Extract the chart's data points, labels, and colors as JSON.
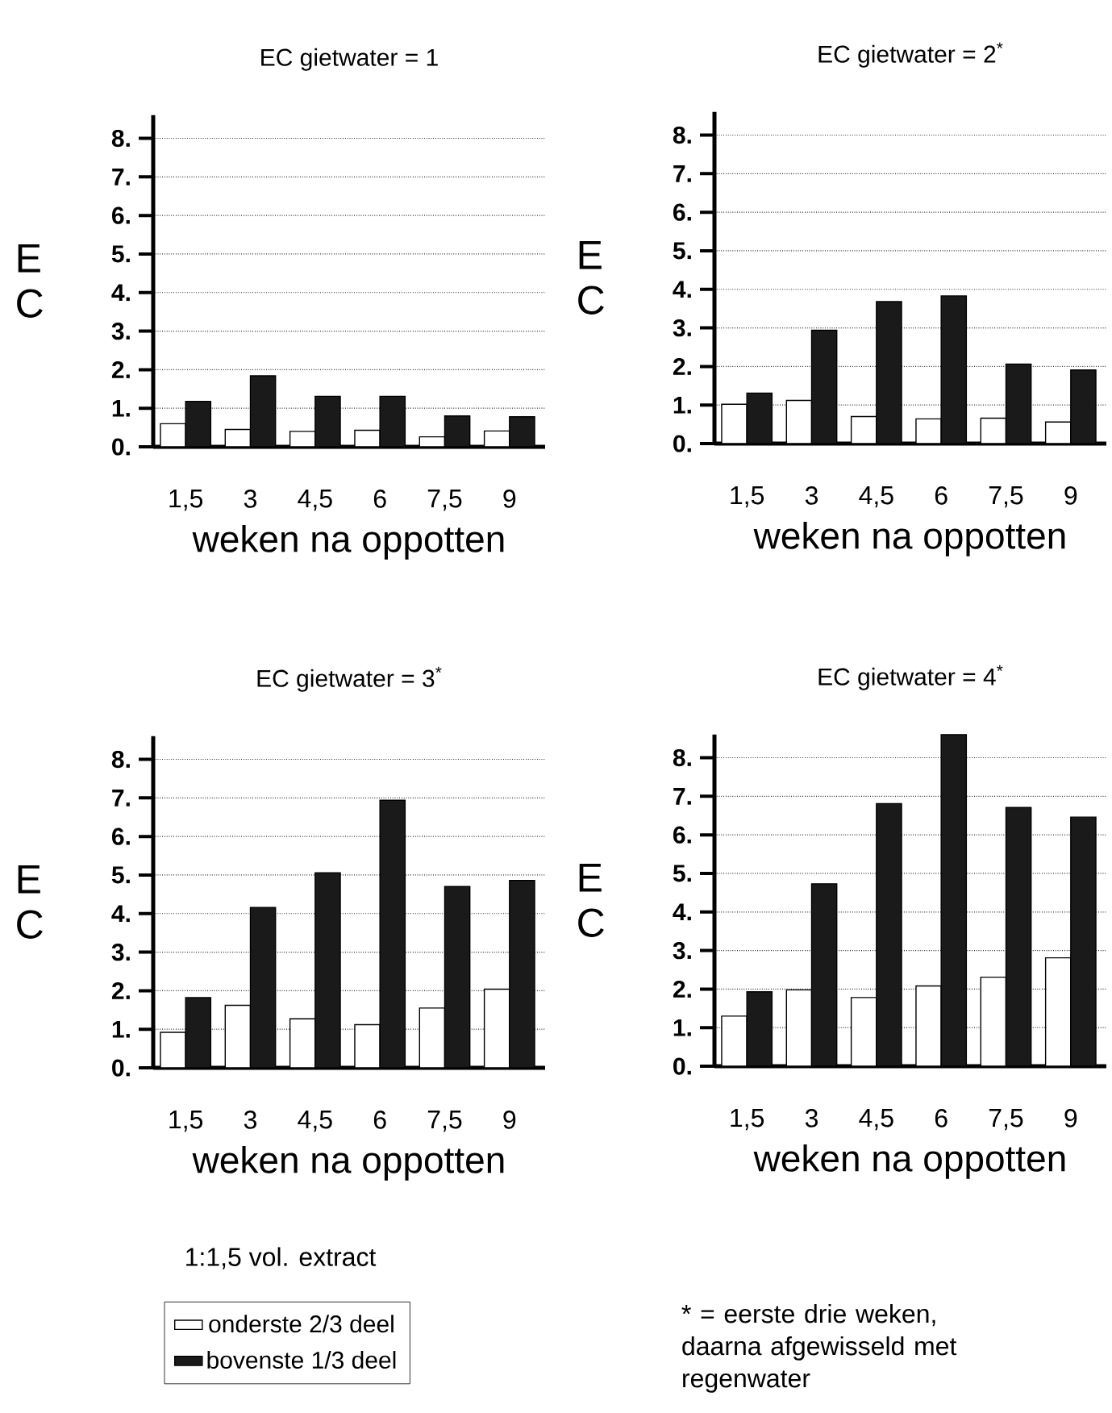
{
  "chart_data": [
    {
      "type": "bar",
      "title": "EC gietwater = 1",
      "xlabel": "weken na oppotten",
      "ylabel": "E C",
      "categories": [
        "1,5",
        "3",
        "4,5",
        "6",
        "7,5",
        "9"
      ],
      "series": [
        {
          "color": "#ffffff",
          "values": [
            0.6,
            0.45,
            0.4,
            0.43,
            0.26,
            0.41
          ]
        },
        {
          "color": "#1a1a1a",
          "values": [
            1.18,
            1.84,
            1.31,
            1.31,
            0.8,
            0.78
          ]
        }
      ],
      "ylim": [
        0,
        8.6
      ],
      "yticks": [
        {
          "value": 0,
          "label": "0."
        },
        {
          "value": 1,
          "label": "1."
        },
        {
          "value": 2,
          "label": "2."
        },
        {
          "value": 3,
          "label": "3."
        },
        {
          "value": 4,
          "label": "4."
        },
        {
          "value": 5,
          "label": "5."
        },
        {
          "value": 6,
          "label": "6."
        },
        {
          "value": 7,
          "label": "7."
        },
        {
          "value": 8,
          "label": "8."
        }
      ],
      "grid": "y",
      "legend": false
    },
    {
      "type": "bar",
      "title": "EC gietwater = 2$^{*}$",
      "xlabel": "weken na oppotten",
      "ylabel": "E C",
      "categories": [
        "1,5",
        "3",
        "4,5",
        "6",
        "7,5",
        "9"
      ],
      "series": [
        {
          "color": "#ffffff",
          "values": [
            1.02,
            1.12,
            0.7,
            0.64,
            0.66,
            0.56
          ]
        },
        {
          "color": "#1a1a1a",
          "values": [
            1.31,
            2.94,
            3.68,
            3.83,
            2.06,
            1.91
          ]
        }
      ],
      "ylim": [
        0,
        8.6
      ],
      "yticks": [
        {
          "value": 0,
          "label": "0."
        },
        {
          "value": 1,
          "label": "1."
        },
        {
          "value": 2,
          "label": "2."
        },
        {
          "value": 3,
          "label": "3."
        },
        {
          "value": 4,
          "label": "4."
        },
        {
          "value": 5,
          "label": "5."
        },
        {
          "value": 6,
          "label": "6."
        },
        {
          "value": 7,
          "label": "7."
        },
        {
          "value": 8,
          "label": "8."
        }
      ],
      "grid": "y",
      "legend": false
    },
    {
      "type": "bar",
      "title": "EC gietwater = 3$^{*}$",
      "xlabel": "weken na oppotten",
      "ylabel": "E C",
      "categories": [
        "1,5",
        "3",
        "4,5",
        "6",
        "7,5",
        "9"
      ],
      "series": [
        {
          "name": "onderste 2/3 deel",
          "color": "#ffffff",
          "values": [
            0.92,
            1.62,
            1.27,
            1.12,
            1.55,
            2.04
          ]
        },
        {
          "name": "bovenste 1/3 deel",
          "color": "#1a1a1a",
          "values": [
            1.82,
            4.16,
            5.06,
            6.94,
            4.7,
            4.86
          ]
        }
      ],
      "ylim": [
        0,
        8.6
      ],
      "yticks": [
        {
          "value": 0,
          "label": "0."
        },
        {
          "value": 1,
          "label": "1."
        },
        {
          "value": 2,
          "label": "2."
        },
        {
          "value": 3,
          "label": "3."
        },
        {
          "value": 4,
          "label": "4."
        },
        {
          "value": 5,
          "label": "5."
        },
        {
          "value": 6,
          "label": "6."
        },
        {
          "value": 7,
          "label": "7."
        },
        {
          "value": 8,
          "label": "8."
        }
      ],
      "grid": "y",
      "legend": "bottom",
      "annotations": [
        "1:1,5 vol. extract"
      ]
    },
    {
      "type": "bar",
      "title": "EC gietwater = 4$^{*}$",
      "xlabel": "weken na oppotten",
      "ylabel": "E C",
      "categories": [
        "1,5",
        "3",
        "4,5",
        "6",
        "7,5",
        "9"
      ],
      "series": [
        {
          "color": "#ffffff",
          "values": [
            1.3,
            1.98,
            1.78,
            2.08,
            2.31,
            2.81
          ]
        },
        {
          "color": "#1a1a1a",
          "values": [
            1.93,
            4.73,
            6.81,
            8.6,
            6.71,
            6.46
          ]
        }
      ],
      "ylim": [
        0,
        8.6
      ],
      "yticks": [
        {
          "value": 0,
          "label": "0."
        },
        {
          "value": 1,
          "label": "1."
        },
        {
          "value": 2,
          "label": "2."
        },
        {
          "value": 3,
          "label": "3."
        },
        {
          "value": 4,
          "label": "4."
        },
        {
          "value": 5,
          "label": "5."
        },
        {
          "value": 6,
          "label": "6."
        },
        {
          "value": 7,
          "label": "7."
        },
        {
          "value": 8,
          "label": "8."
        }
      ],
      "grid": "y",
      "legend": false,
      "annotations": [
        "* = eerste drie weken, daarna afgewisseld met regenwater"
      ]
    }
  ]
}
